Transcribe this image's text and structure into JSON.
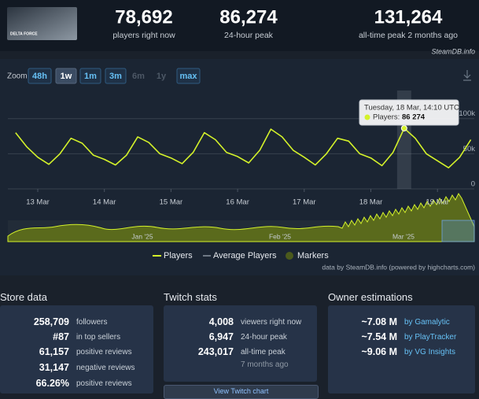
{
  "header": {
    "game": "DELTA FORCE",
    "stats": [
      {
        "value": "78,692",
        "label": "players right now"
      },
      {
        "value": "86,274",
        "label": "24-hour peak"
      },
      {
        "value": "131,264",
        "label": "all-time peak 2 months ago"
      }
    ]
  },
  "chart_widget": {
    "watermark": "SteamDB.info",
    "zoom_label": "Zoom",
    "zoom_options": [
      {
        "label": "48h",
        "enabled": true,
        "selected": false
      },
      {
        "label": "1w",
        "enabled": true,
        "selected": true
      },
      {
        "label": "1m",
        "enabled": true,
        "selected": false
      },
      {
        "label": "3m",
        "enabled": true,
        "selected": false
      },
      {
        "label": "6m",
        "enabled": false,
        "selected": false
      },
      {
        "label": "1y",
        "enabled": false,
        "selected": false
      },
      {
        "label": "max",
        "enabled": true,
        "selected": false
      }
    ],
    "navigator_labels": [
      "Jan '25",
      "Feb '25",
      "Mar '25"
    ],
    "tooltip": {
      "date": "Tuesday, 18 Mar, 14:10 UTC",
      "series": "Players:",
      "value": "86 274"
    },
    "credit": "data by SteamDB.info (powered by highcharts.com)"
  },
  "chart_data": {
    "type": "line",
    "categories": [
      null,
      null,
      "13 Mar",
      null,
      null,
      null,
      null,
      null,
      "14 Mar",
      null,
      null,
      null,
      null,
      null,
      "15 Mar",
      null,
      null,
      null,
      null,
      null,
      "16 Mar",
      null,
      null,
      null,
      null,
      null,
      "17 Mar",
      null,
      null,
      null,
      null,
      null,
      "18 Mar",
      null,
      null,
      null,
      null,
      null,
      "19 Mar",
      null,
      null,
      null
    ],
    "series": [
      {
        "name": "Players",
        "color": "#d4f22a",
        "values": [
          80000,
          60000,
          45000,
          35000,
          50000,
          72000,
          65000,
          48000,
          42000,
          34000,
          48000,
          74000,
          66000,
          50000,
          44000,
          36000,
          52000,
          80000,
          70000,
          52000,
          46000,
          37000,
          55000,
          85000,
          74000,
          55000,
          45000,
          34000,
          50000,
          72000,
          68000,
          50000,
          44000,
          33000,
          52000,
          86274,
          72000,
          50000,
          40000,
          30000,
          45000,
          70000
        ]
      }
    ],
    "extra_legend": [
      {
        "name": "Average Players",
        "color": "#8a94a0"
      },
      {
        "name": "Markers",
        "color": "#4b5a1c"
      }
    ],
    "ylim": [
      0,
      140000
    ],
    "yticks": [
      0,
      {
        "value": 50000,
        "label": "50k"
      },
      {
        "value": 100000,
        "label": "100k"
      }
    ],
    "grid": true
  },
  "panels": {
    "store": {
      "title": "Store data",
      "rows": [
        [
          "258,709",
          "followers"
        ],
        [
          "#87",
          "in top sellers"
        ],
        [
          "61,157",
          "positive reviews"
        ],
        [
          "31,147",
          "negative reviews"
        ],
        [
          "66.26%",
          "positive reviews"
        ]
      ]
    },
    "twitch": {
      "title": "Twitch stats",
      "rows": [
        [
          "4,008",
          "viewers right now"
        ],
        [
          "6,947",
          "24-hour peak"
        ],
        [
          "243,017",
          "all-time peak"
        ]
      ],
      "note": "7 months ago",
      "button": "View Twitch chart"
    },
    "owners": {
      "title": "Owner estimations",
      "rows": [
        [
          "~7.08 M",
          "by Gamalytic"
        ],
        [
          "~7.54 M",
          "by PlayTracker"
        ],
        [
          "~9.06 M",
          "by VG Insights"
        ]
      ]
    }
  }
}
